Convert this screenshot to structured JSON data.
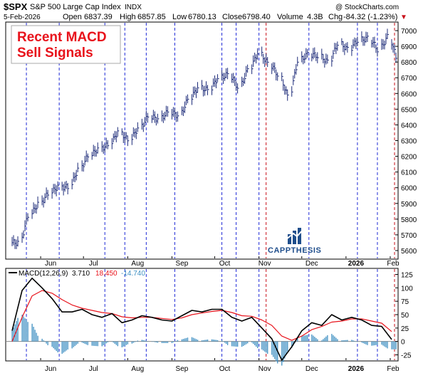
{
  "header": {
    "symbol": "$SPX",
    "name": "S&P 500 Large Cap Index",
    "exchange": "INDX",
    "date": "5-Feb-2026",
    "open_label": "Open",
    "open": "6837.39",
    "high_label": "High",
    "high": "6857.85",
    "low_label": "Low",
    "low": "6780.13",
    "close_label": "Close",
    "close": "6798.40",
    "volume_label": "Volume",
    "volume": "4.3B",
    "chg_label": "Chg",
    "chg": "-84.32 (-1.23%)",
    "chg_symbol": "▼",
    "credit": "@ StockCharts.com"
  },
  "annotation": {
    "line1": "Recent MACD",
    "line2": "Sell Signals",
    "color": "#e8121b"
  },
  "logo": {
    "text": "CAPPTHESIS",
    "color": "#1f4e8c"
  },
  "macd_legend": {
    "label": "MACD(12,26,9)",
    "macd_value": "3.710",
    "signal_value": "18.450",
    "hist_value": "-14.740"
  },
  "chart_data": [
    {
      "type": "ohlc",
      "title": "$SPX S&P 500 Large Cap Index",
      "series": [
        {
          "name": "$SPX",
          "x": [
            "2025-05-12",
            "2025-05-19",
            "2025-05-26",
            "2025-06-02",
            "2025-06-09",
            "2025-06-16",
            "2025-06-23",
            "2025-06-30",
            "2025-07-07",
            "2025-07-14",
            "2025-07-21",
            "2025-07-28",
            "2025-08-04",
            "2025-08-11",
            "2025-08-18",
            "2025-08-25",
            "2025-09-01",
            "2025-09-08",
            "2025-09-15",
            "2025-09-22",
            "2025-09-29",
            "2025-10-06",
            "2025-10-13",
            "2025-10-20",
            "2025-10-27",
            "2025-11-03",
            "2025-11-10",
            "2025-11-17",
            "2025-11-24",
            "2025-12-01",
            "2025-12-08",
            "2025-12-15",
            "2025-12-22",
            "2025-12-29",
            "2026-01-05",
            "2026-01-12",
            "2026-01-19",
            "2026-01-26",
            "2026-02-02"
          ],
          "values": [
            5650,
            5820,
            5900,
            5960,
            6010,
            6000,
            6120,
            6200,
            6250,
            6270,
            6360,
            6300,
            6380,
            6450,
            6440,
            6480,
            6460,
            6560,
            6640,
            6620,
            6700,
            6720,
            6640,
            6750,
            6860,
            6790,
            6720,
            6580,
            6810,
            6850,
            6840,
            6800,
            6920,
            6880,
            6940,
            6950,
            6880,
            6960,
            6798
          ]
        }
      ],
      "ylim": [
        5550,
        7050
      ],
      "yticks": [
        5600,
        5700,
        5800,
        5900,
        6000,
        6100,
        6200,
        6300,
        6400,
        6500,
        6600,
        6700,
        6800,
        6900,
        7000
      ],
      "xtick_labels": [
        "Jun",
        "Jul",
        "Aug",
        "Sep",
        "Oct",
        "Nov",
        "Dec",
        "2026",
        "Feb"
      ],
      "grid": false
    },
    {
      "type": "line",
      "title": "MACD(12,26,9)",
      "x": [
        "2025-05-12",
        "2025-05-19",
        "2025-05-26",
        "2025-06-02",
        "2025-06-09",
        "2025-06-16",
        "2025-06-23",
        "2025-06-30",
        "2025-07-07",
        "2025-07-14",
        "2025-07-21",
        "2025-07-28",
        "2025-08-04",
        "2025-08-11",
        "2025-08-18",
        "2025-08-25",
        "2025-09-01",
        "2025-09-08",
        "2025-09-15",
        "2025-09-22",
        "2025-09-29",
        "2025-10-06",
        "2025-10-13",
        "2025-10-20",
        "2025-10-27",
        "2025-11-03",
        "2025-11-10",
        "2025-11-17",
        "2025-11-24",
        "2025-12-01",
        "2025-12-08",
        "2025-12-15",
        "2025-12-22",
        "2025-12-29",
        "2026-01-05",
        "2026-01-12",
        "2026-01-19",
        "2026-01-26",
        "2026-02-02"
      ],
      "series": [
        {
          "name": "MACD",
          "color": "#000000",
          "values": [
            20,
            95,
            118,
            100,
            80,
            55,
            55,
            60,
            50,
            45,
            52,
            35,
            40,
            48,
            45,
            40,
            38,
            48,
            58,
            55,
            60,
            60,
            45,
            38,
            45,
            25,
            5,
            -35,
            -10,
            20,
            35,
            30,
            50,
            40,
            45,
            40,
            30,
            28,
            3.71
          ]
        },
        {
          "name": "Signal",
          "color": "#e8121b",
          "values": [
            0,
            45,
            85,
            95,
            90,
            78,
            68,
            62,
            58,
            54,
            52,
            46,
            44,
            45,
            45,
            43,
            41,
            44,
            50,
            53,
            56,
            58,
            54,
            48,
            47,
            40,
            30,
            10,
            2,
            10,
            22,
            28,
            36,
            38,
            42,
            42,
            38,
            34,
            18.45
          ]
        },
        {
          "name": "Histogram",
          "color": "#3e8fc2",
          "values": [
            20,
            50,
            33,
            5,
            -10,
            -23,
            -13,
            -2,
            -8,
            -9,
            0,
            -11,
            -4,
            3,
            0,
            -3,
            -3,
            4,
            8,
            2,
            4,
            2,
            -9,
            -10,
            -2,
            -15,
            -25,
            -45,
            -12,
            10,
            13,
            2,
            14,
            2,
            3,
            -2,
            -8,
            -6,
            -14.74
          ]
        }
      ],
      "ylim": [
        -35,
        135
      ],
      "yticks": [
        -25,
        0,
        25,
        50,
        75,
        100,
        125
      ],
      "xtick_labels": [
        "Jun",
        "Jul",
        "Aug",
        "Sep",
        "Oct",
        "Nov",
        "Dec",
        "2026",
        "Feb"
      ],
      "grid": false
    }
  ],
  "sell_signal_lines": {
    "blue": [
      "2025-05-22",
      "2025-06-14",
      "2025-07-16",
      "2025-07-30",
      "2025-08-14",
      "2025-09-03",
      "2025-10-06",
      "2025-10-16",
      "2025-11-01",
      "2025-12-06",
      "2026-01-09",
      "2026-01-23"
    ],
    "red": [
      "2025-11-06",
      "2026-02-04"
    ]
  },
  "colors": {
    "blue_line": "#1f2ad6",
    "red_line": "#c8101a",
    "price_bar": "#1c2a78",
    "histogram": "#3e8fc2",
    "macd": "#000000",
    "signal": "#e8121b"
  }
}
